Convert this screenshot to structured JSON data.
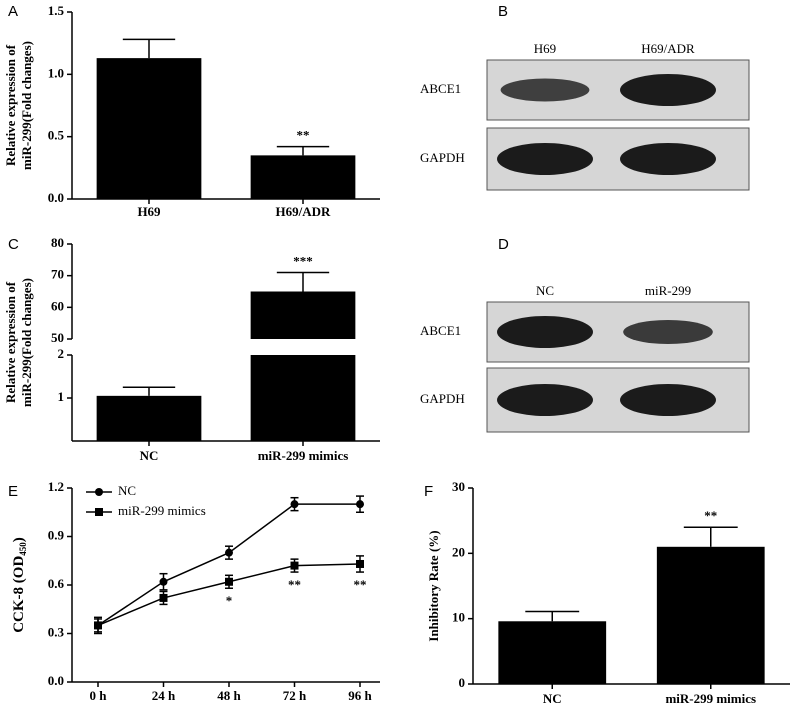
{
  "chart_data": [
    {
      "type": "bar",
      "panel": "A",
      "categories": [
        "H69",
        "H69/ADR"
      ],
      "values": [
        1.13,
        0.35
      ],
      "errors": [
        0.15,
        0.07
      ],
      "significance": [
        null,
        "**"
      ],
      "color": "#000000",
      "ylabel": [
        "Relative expression of",
        "miR-299(Fold changes)"
      ],
      "ylim": [
        0,
        1.5
      ],
      "yticks": [
        {
          "value": 0,
          "label": "0.0"
        },
        0.5,
        {
          "value": 1,
          "label": "1.0"
        },
        1.5
      ]
    },
    {
      "type": "bar",
      "panel": "C",
      "categories": [
        "NC",
        "miR-299 mimics"
      ],
      "values": [
        1.05,
        65
      ],
      "errors": [
        0.2,
        6
      ],
      "significance": [
        null,
        "***"
      ],
      "color": "#000000",
      "ylabel": [
        "Relative expression of",
        "miR-299(Fold changes)"
      ],
      "ylim": [
        0,
        80
      ],
      "ybreak": [
        2,
        50
      ],
      "yticks": [
        1,
        2,
        50,
        60,
        70,
        80
      ]
    },
    {
      "type": "line",
      "panel": "E",
      "categories": [
        "0 h",
        "24 h",
        "48 h",
        "72 h",
        "96 h"
      ],
      "series": [
        {
          "name": "NC",
          "color": "#000000",
          "marker": "circle",
          "values": [
            0.35,
            0.62,
            0.8,
            1.1,
            1.1
          ],
          "errors": [
            0.05,
            0.05,
            0.04,
            0.04,
            0.05
          ],
          "significance": [
            null,
            null,
            null,
            null,
            null
          ]
        },
        {
          "name": "miR-299 mimics",
          "color": "#000000",
          "marker": "square",
          "values": [
            0.35,
            0.52,
            0.62,
            0.72,
            0.73
          ],
          "errors": [
            0.04,
            0.04,
            0.04,
            0.04,
            0.05
          ],
          "significance": [
            null,
            null,
            "*",
            "**",
            "**"
          ]
        }
      ],
      "ylabel": "CCK-8 (OD",
      "ylabel_sub": "450",
      "ylabel_end": ")",
      "ylim": [
        0,
        1.2
      ],
      "yticks": [
        {
          "value": 0,
          "label": "0.0"
        },
        0.3,
        0.6,
        0.9,
        1.2
      ],
      "legend": "top-left"
    },
    {
      "type": "bar",
      "panel": "F",
      "categories": [
        "NC",
        "miR-299 mimics"
      ],
      "values": [
        9.6,
        21
      ],
      "errors": [
        1.5,
        3
      ],
      "significance": [
        null,
        "**"
      ],
      "color": "#000000",
      "ylabel": [
        "Inhibitory Rate (%)"
      ],
      "ylim": [
        0,
        30
      ],
      "yticks": [
        0,
        10,
        20,
        30
      ]
    }
  ],
  "blots": [
    {
      "panel": "B",
      "lanes": [
        "H69",
        "H69/ADR"
      ],
      "rows": [
        "ABCE1",
        "GAPDH"
      ]
    },
    {
      "panel": "D",
      "lanes": [
        "NC",
        "miR-299"
      ],
      "rows": [
        "ABCE1",
        "GAPDH"
      ]
    }
  ]
}
